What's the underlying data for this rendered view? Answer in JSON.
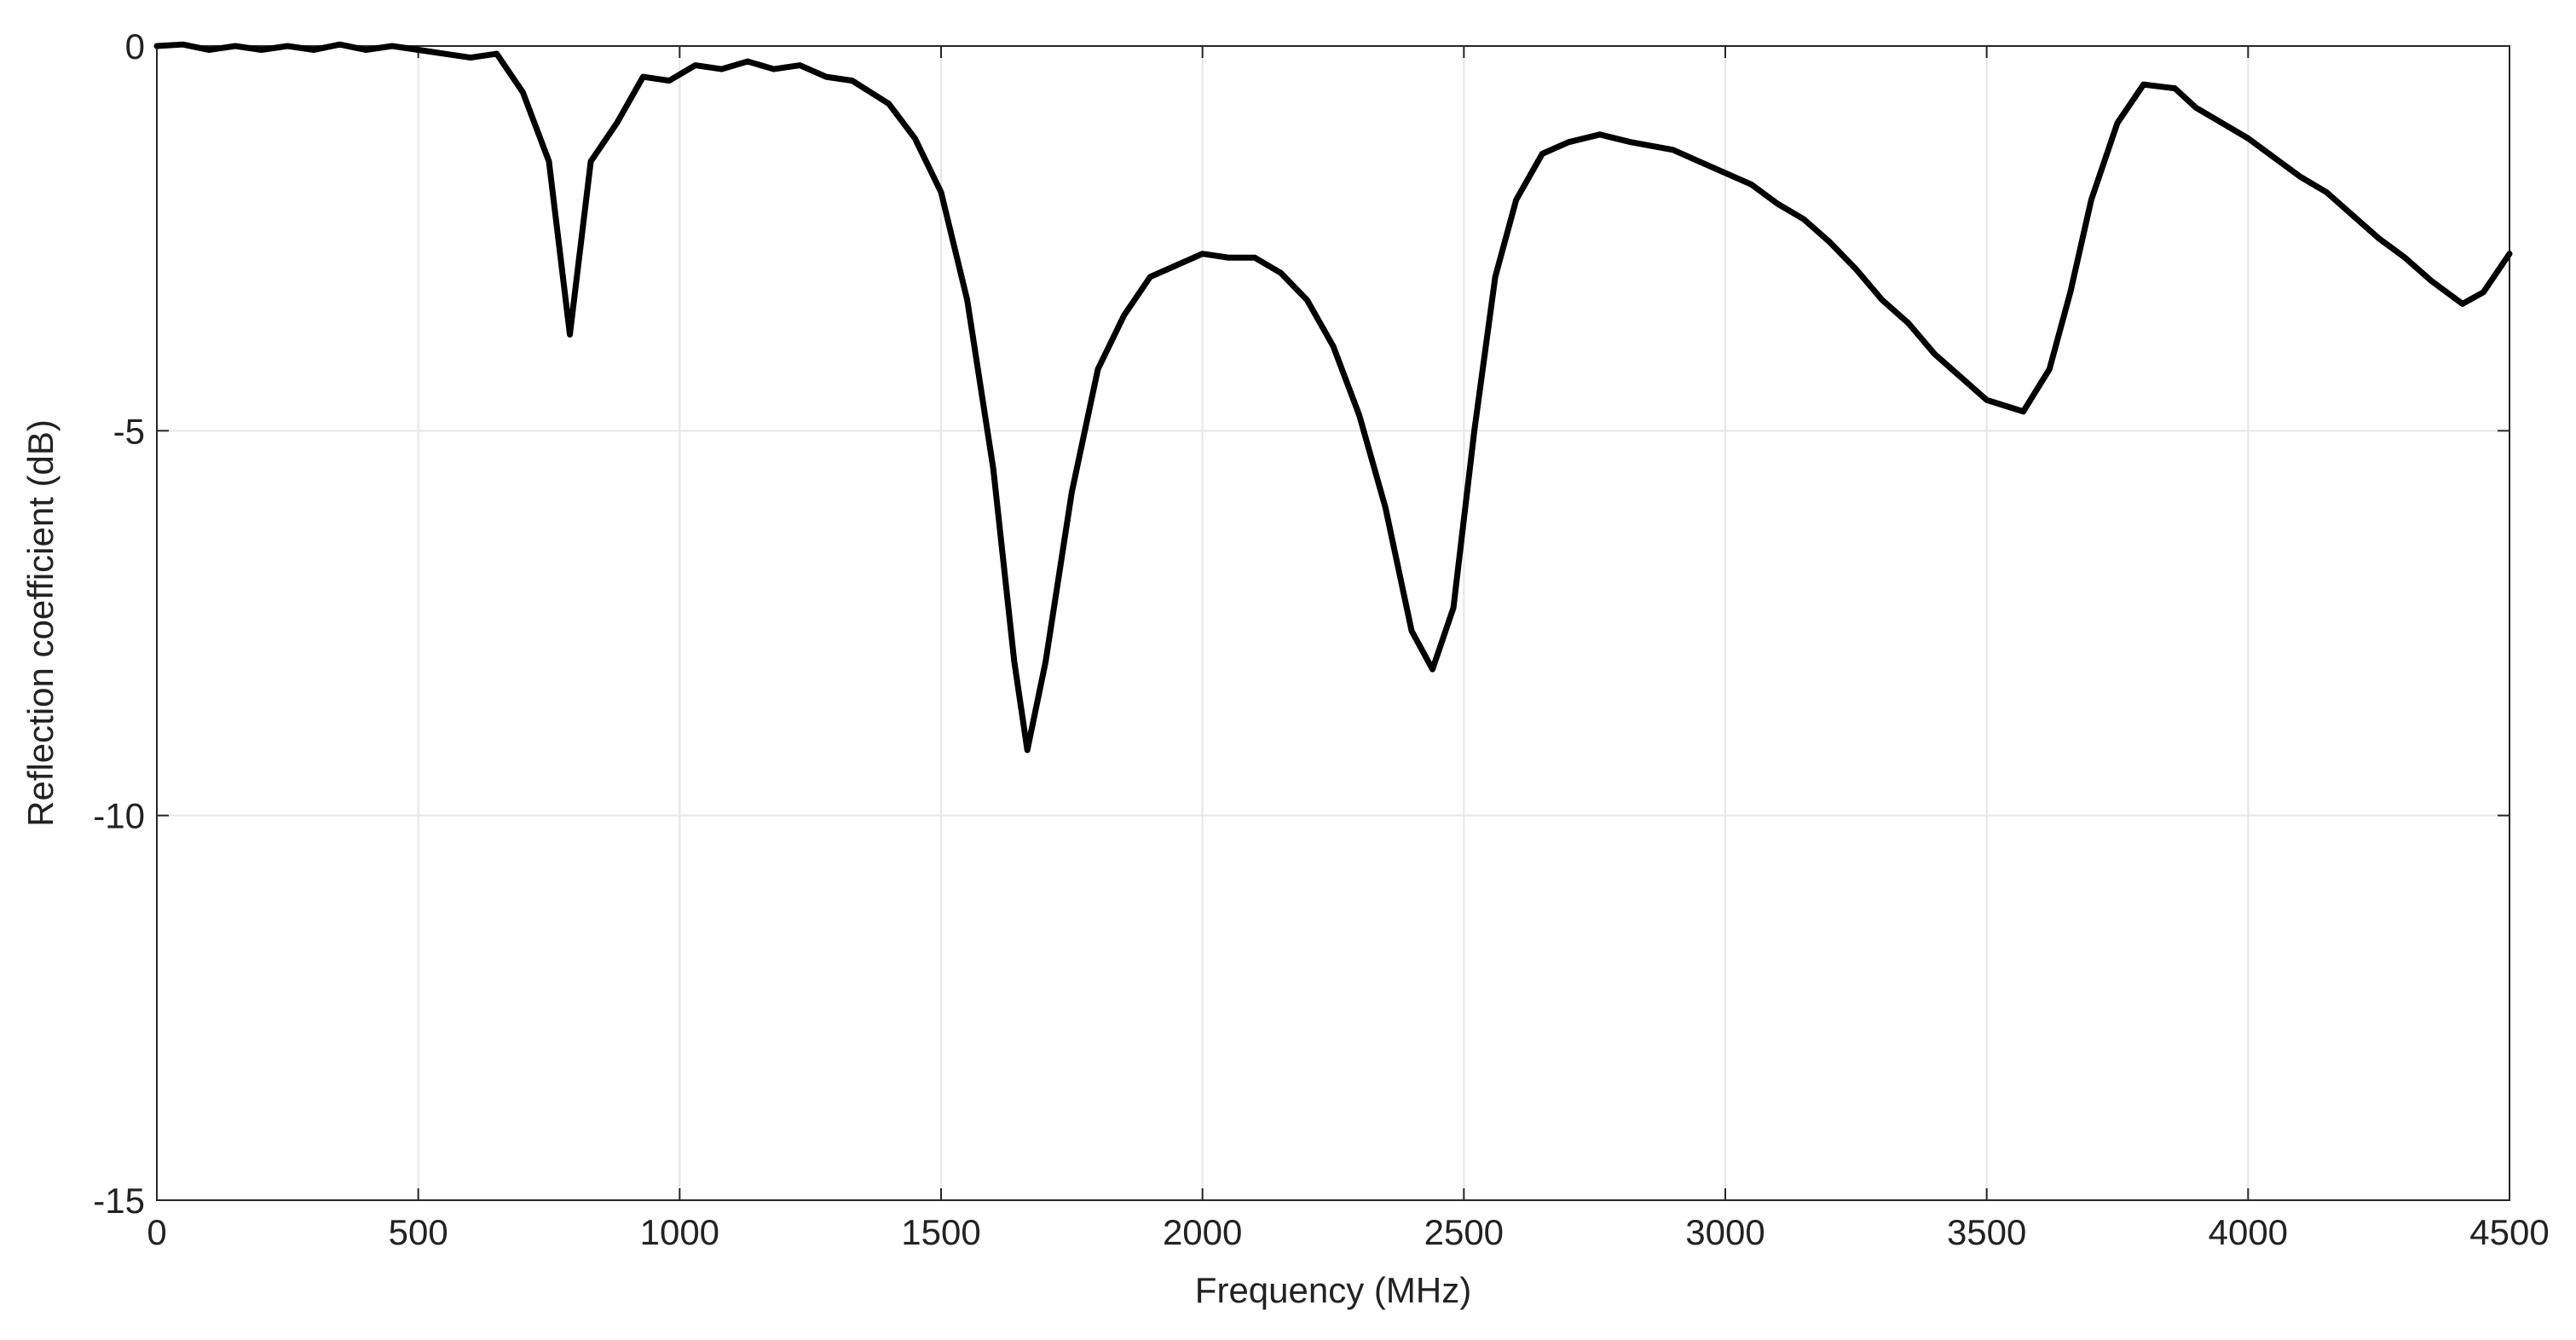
{
  "chart_data": {
    "type": "line",
    "x_label": "Frequency (MHz)",
    "y_label": "Reflection coefficient (dB)",
    "xlim": [
      0,
      4500
    ],
    "ylim": [
      -15,
      0
    ],
    "xticks": [
      0,
      500,
      1000,
      1500,
      2000,
      2500,
      3000,
      3500,
      4000,
      4500
    ],
    "yticks": [
      0,
      -5,
      -10,
      -15
    ],
    "grid": true,
    "x": [
      0,
      50,
      100,
      150,
      200,
      250,
      300,
      350,
      400,
      450,
      500,
      550,
      600,
      650,
      700,
      750,
      790,
      830,
      880,
      930,
      980,
      1030,
      1080,
      1130,
      1180,
      1230,
      1280,
      1330,
      1400,
      1450,
      1500,
      1550,
      1600,
      1640,
      1665,
      1700,
      1750,
      1800,
      1850,
      1900,
      1950,
      2000,
      2050,
      2100,
      2150,
      2200,
      2250,
      2300,
      2350,
      2400,
      2440,
      2480,
      2520,
      2560,
      2600,
      2650,
      2700,
      2760,
      2820,
      2900,
      2950,
      3000,
      3050,
      3100,
      3150,
      3200,
      3250,
      3300,
      3350,
      3400,
      3450,
      3500,
      3570,
      3620,
      3660,
      3700,
      3750,
      3800,
      3860,
      3900,
      3950,
      4000,
      4050,
      4100,
      4150,
      4200,
      4250,
      4300,
      4350,
      4410,
      4450,
      4500
    ],
    "series": [
      {
        "color": "#000000",
        "values": [
          0,
          0.02,
          -0.05,
          0,
          -0.05,
          0,
          -0.05,
          0.02,
          -0.05,
          0,
          -0.05,
          -0.1,
          -0.15,
          -0.1,
          -0.6,
          -1.5,
          -3.75,
          -1.5,
          -1.0,
          -0.4,
          -0.45,
          -0.25,
          -0.3,
          -0.2,
          -0.3,
          -0.25,
          -0.4,
          -0.45,
          -0.75,
          -1.2,
          -1.9,
          -3.3,
          -5.5,
          -8,
          -9.15,
          -8,
          -5.8,
          -4.2,
          -3.5,
          -3.0,
          -2.85,
          -2.7,
          -2.75,
          -2.75,
          -2.95,
          -3.3,
          -3.9,
          -4.8,
          -6.0,
          -7.6,
          -8.1,
          -7.3,
          -5.0,
          -3.0,
          -2.0,
          -1.4,
          -1.25,
          -1.15,
          -1.25,
          -1.35,
          -1.5,
          -1.65,
          -1.8,
          -2.05,
          -2.25,
          -2.55,
          -2.9,
          -3.3,
          -3.6,
          -4.0,
          -4.3,
          -4.6,
          -4.75,
          -4.2,
          -3.2,
          -2.0,
          -1.0,
          -0.5,
          -0.55,
          -0.8,
          -1.0,
          -1.2,
          -1.45,
          -1.7,
          -1.9,
          -2.2,
          -2.5,
          -2.75,
          -3.05,
          -3.35,
          -3.2,
          -2.7
        ]
      }
    ]
  }
}
